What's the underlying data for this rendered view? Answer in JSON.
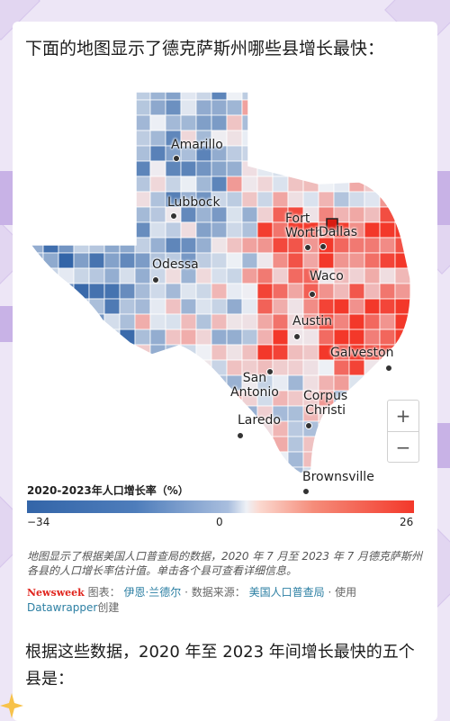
{
  "heading": "下面的地图显示了德克萨斯州哪些县增长最快：",
  "map": {
    "cities": [
      {
        "id": "amarillo",
        "name": "Amarillo"
      },
      {
        "id": "lubbock",
        "name": "Lubbock"
      },
      {
        "id": "fort-worth",
        "name": "Fort\nWorth"
      },
      {
        "id": "dallas",
        "name": "Dallas"
      },
      {
        "id": "odessa",
        "name": "Odessa"
      },
      {
        "id": "waco",
        "name": "Waco"
      },
      {
        "id": "austin",
        "name": "Austin"
      },
      {
        "id": "galveston",
        "name": "Galveston"
      },
      {
        "id": "san-antonio",
        "name": "San\nAntonio"
      },
      {
        "id": "corpus-christi",
        "name": "Corpus\nChristi"
      },
      {
        "id": "laredo",
        "name": "Laredo"
      },
      {
        "id": "brownsville",
        "name": "Brownsville"
      }
    ],
    "zoom_in": "+",
    "zoom_out": "−"
  },
  "legend": {
    "title": "2020-2023年人口增长率（%）",
    "min": "−34",
    "mid": "0",
    "max": "26",
    "min_value": -34,
    "max_value": 26,
    "colors": {
      "negative": "#3365a8",
      "neutral": "#eef1f6",
      "positive": "#f3382a"
    }
  },
  "caption": "地图显示了根据美国人口普查局的数据，2020 年 7 月至 2023 年 7 月德克萨斯州各县的人口增长率估计值。单击各个县可查看详细信息。",
  "credit": {
    "brand": "Newsweek",
    "chart_label": "图表：",
    "author": "伊恩·兰德尔",
    "source_label": "· 数据来源：",
    "source": "美国人口普查局",
    "use_label": "· 使用",
    "tool": "Datawrapper",
    "created": "创建"
  },
  "body_text": "根据这些数据，2020 年至 2023 年间增长最快的五个县是："
}
